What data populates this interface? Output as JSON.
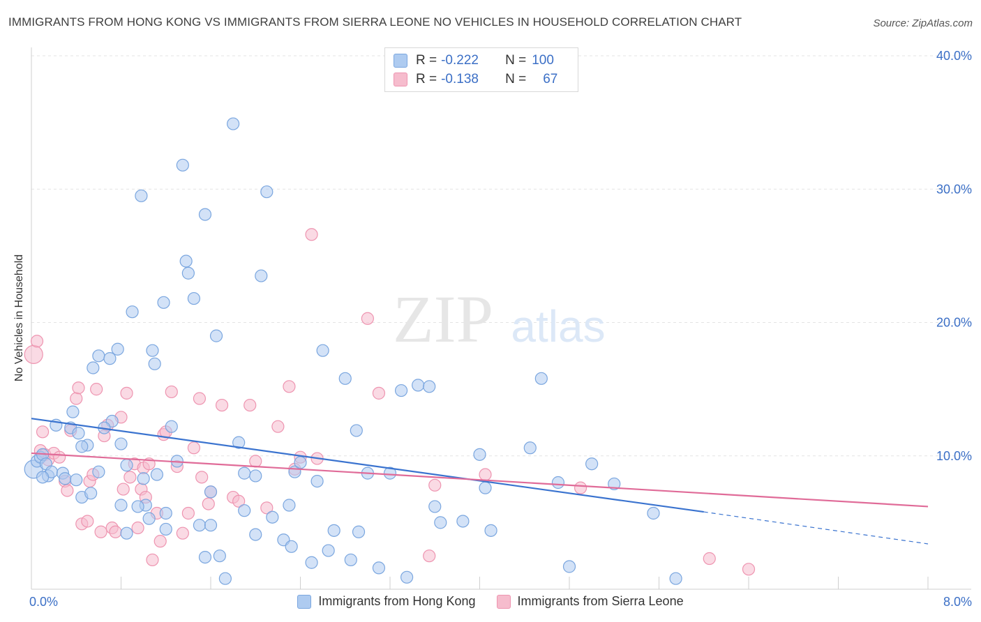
{
  "title": "IMMIGRANTS FROM HONG KONG VS IMMIGRANTS FROM SIERRA LEONE NO VEHICLES IN HOUSEHOLD CORRELATION CHART",
  "source": "Source: ZipAtlas.com",
  "watermark": {
    "zip": "ZIP",
    "atlas": "atlas"
  },
  "stats": [
    {
      "r_label": "R =",
      "r_value": "-0.222",
      "n_label": "N =",
      "n_value": "100"
    },
    {
      "r_label": "R =",
      "r_value": "-0.138",
      "n_label": "N =",
      "n_value": "67"
    }
  ],
  "colors": {
    "blue_fill": "#aecbf0",
    "blue_stroke": "#7aa6df",
    "blue_line": "#3a73cf",
    "pink_fill": "#f6bccd",
    "pink_stroke": "#ee94b0",
    "pink_line": "#e06b98",
    "tick_text": "#3b6fc6",
    "grid": "#e3e3e3"
  },
  "chart_data": {
    "type": "scatter",
    "title": "IMMIGRANTS FROM HONG KONG VS IMMIGRANTS FROM SIERRA LEONE NO VEHICLES IN HOUSEHOLD CORRELATION CHART",
    "xlabel": "",
    "ylabel": "No Vehicles in Household",
    "xlim": [
      0,
      8
    ],
    "ylim": [
      0,
      40
    ],
    "x_tick_labels": [
      "0.0%",
      "8.0%"
    ],
    "y_tick_labels": [
      "10.0%",
      "20.0%",
      "30.0%",
      "40.0%"
    ],
    "y_ticks": [
      10,
      20,
      30,
      40
    ],
    "grid": true,
    "legend_position": "bottom",
    "series": [
      {
        "name": "Immigrants from Hong Kong",
        "color": "#aecbf0",
        "trend": {
          "x": [
            0,
            6.0
          ],
          "y": [
            12.8,
            5.8
          ],
          "dashed_to": [
            8.0,
            3.4
          ]
        },
        "points": [
          [
            0.02,
            9.0
          ],
          [
            0.05,
            9.6
          ],
          [
            0.08,
            9.9
          ],
          [
            0.1,
            10.1
          ],
          [
            0.13,
            9.4
          ],
          [
            0.15,
            8.5
          ],
          [
            0.18,
            8.8
          ],
          [
            0.22,
            12.3
          ],
          [
            0.28,
            8.7
          ],
          [
            0.3,
            8.3
          ],
          [
            0.35,
            12.1
          ],
          [
            0.37,
            13.3
          ],
          [
            0.42,
            11.7
          ],
          [
            0.45,
            6.9
          ],
          [
            0.53,
            7.2
          ],
          [
            0.5,
            10.8
          ],
          [
            0.55,
            16.6
          ],
          [
            0.6,
            17.5
          ],
          [
            0.7,
            17.3
          ],
          [
            0.72,
            12.6
          ],
          [
            0.77,
            18.0
          ],
          [
            0.8,
            10.9
          ],
          [
            0.8,
            6.3
          ],
          [
            0.85,
            9.3
          ],
          [
            0.85,
            4.2
          ],
          [
            0.9,
            20.8
          ],
          [
            0.98,
            29.5
          ],
          [
            1.02,
            6.3
          ],
          [
            1.05,
            5.3
          ],
          [
            1.08,
            17.9
          ],
          [
            1.1,
            16.9
          ],
          [
            1.12,
            8.6
          ],
          [
            1.18,
            21.5
          ],
          [
            1.2,
            5.7
          ],
          [
            1.25,
            12.2
          ],
          [
            1.3,
            9.6
          ],
          [
            1.35,
            31.8
          ],
          [
            1.38,
            24.6
          ],
          [
            1.4,
            23.7
          ],
          [
            1.45,
            21.8
          ],
          [
            1.5,
            4.8
          ],
          [
            1.55,
            28.1
          ],
          [
            1.6,
            7.3
          ],
          [
            1.65,
            19.0
          ],
          [
            1.68,
            2.5
          ],
          [
            1.73,
            0.8
          ],
          [
            1.8,
            34.9
          ],
          [
            1.85,
            11.0
          ],
          [
            1.9,
            5.9
          ],
          [
            1.9,
            8.7
          ],
          [
            2.0,
            4.1
          ],
          [
            2.05,
            23.5
          ],
          [
            2.1,
            29.8
          ],
          [
            2.15,
            5.4
          ],
          [
            2.25,
            3.7
          ],
          [
            2.3,
            6.3
          ],
          [
            2.32,
            3.2
          ],
          [
            2.35,
            8.8
          ],
          [
            2.4,
            9.5
          ],
          [
            2.5,
            2.0
          ],
          [
            2.55,
            8.1
          ],
          [
            2.6,
            17.9
          ],
          [
            2.65,
            2.9
          ],
          [
            2.7,
            4.4
          ],
          [
            2.8,
            15.8
          ],
          [
            2.85,
            2.2
          ],
          [
            2.92,
            4.3
          ],
          [
            3.0,
            8.7
          ],
          [
            3.1,
            1.6
          ],
          [
            3.2,
            8.7
          ],
          [
            3.3,
            14.9
          ],
          [
            3.35,
            0.9
          ],
          [
            3.45,
            15.3
          ],
          [
            3.55,
            15.2
          ],
          [
            3.6,
            6.2
          ],
          [
            3.65,
            5.0
          ],
          [
            3.85,
            5.1
          ],
          [
            4.0,
            10.1
          ],
          [
            4.05,
            7.6
          ],
          [
            4.1,
            4.4
          ],
          [
            4.45,
            10.6
          ],
          [
            4.55,
            15.8
          ],
          [
            4.7,
            8.0
          ],
          [
            4.8,
            1.7
          ],
          [
            5.0,
            9.4
          ],
          [
            5.2,
            7.9
          ],
          [
            5.55,
            5.7
          ],
          [
            5.75,
            0.8
          ],
          [
            1.55,
            2.4
          ],
          [
            1.6,
            4.8
          ],
          [
            2.0,
            8.5
          ],
          [
            0.95,
            6.2
          ],
          [
            1.0,
            8.3
          ],
          [
            0.6,
            8.8
          ],
          [
            0.4,
            8.2
          ],
          [
            0.65,
            12.1
          ],
          [
            1.2,
            4.5
          ],
          [
            2.9,
            11.9
          ],
          [
            0.45,
            10.7
          ],
          [
            0.1,
            8.4
          ]
        ]
      },
      {
        "name": "Immigrants from Sierra Leone",
        "color": "#f6bccd",
        "trend": {
          "x": [
            0,
            8.0
          ],
          "y": [
            10.2,
            6.2
          ]
        },
        "points": [
          [
            0.02,
            17.6
          ],
          [
            0.05,
            18.6
          ],
          [
            0.08,
            10.4
          ],
          [
            0.1,
            11.8
          ],
          [
            0.12,
            10.1
          ],
          [
            0.15,
            9.7
          ],
          [
            0.2,
            10.2
          ],
          [
            0.25,
            9.9
          ],
          [
            0.3,
            8.1
          ],
          [
            0.32,
            7.4
          ],
          [
            0.35,
            11.9
          ],
          [
            0.4,
            14.3
          ],
          [
            0.42,
            15.1
          ],
          [
            0.45,
            4.9
          ],
          [
            0.5,
            5.1
          ],
          [
            0.52,
            8.1
          ],
          [
            0.55,
            8.6
          ],
          [
            0.58,
            15.0
          ],
          [
            0.62,
            4.3
          ],
          [
            0.65,
            11.5
          ],
          [
            0.68,
            12.3
          ],
          [
            0.72,
            4.6
          ],
          [
            0.75,
            4.3
          ],
          [
            0.8,
            12.9
          ],
          [
            0.82,
            7.5
          ],
          [
            0.85,
            14.7
          ],
          [
            0.88,
            8.4
          ],
          [
            0.92,
            9.4
          ],
          [
            0.95,
            4.6
          ],
          [
            0.98,
            7.5
          ],
          [
            1.0,
            9.1
          ],
          [
            1.02,
            6.9
          ],
          [
            1.05,
            9.4
          ],
          [
            1.08,
            2.2
          ],
          [
            1.12,
            5.7
          ],
          [
            1.15,
            3.6
          ],
          [
            1.18,
            11.6
          ],
          [
            1.2,
            11.8
          ],
          [
            1.25,
            14.8
          ],
          [
            1.3,
            9.2
          ],
          [
            1.35,
            4.2
          ],
          [
            1.4,
            5.7
          ],
          [
            1.45,
            10.6
          ],
          [
            1.5,
            14.3
          ],
          [
            1.52,
            8.4
          ],
          [
            1.58,
            6.4
          ],
          [
            1.6,
            7.3
          ],
          [
            1.7,
            13.8
          ],
          [
            1.8,
            6.9
          ],
          [
            1.85,
            6.6
          ],
          [
            1.95,
            13.8
          ],
          [
            2.0,
            9.6
          ],
          [
            2.1,
            6.1
          ],
          [
            2.2,
            12.2
          ],
          [
            2.3,
            15.2
          ],
          [
            2.4,
            9.9
          ],
          [
            2.5,
            26.6
          ],
          [
            3.0,
            20.3
          ],
          [
            3.1,
            14.7
          ],
          [
            3.55,
            2.5
          ],
          [
            3.6,
            7.8
          ],
          [
            4.05,
            8.6
          ],
          [
            4.9,
            7.6
          ],
          [
            6.05,
            2.3
          ],
          [
            6.4,
            1.5
          ],
          [
            2.35,
            9.0
          ],
          [
            2.55,
            9.8
          ]
        ]
      }
    ]
  },
  "legend": {
    "items": [
      {
        "label": "Immigrants from Hong Kong"
      },
      {
        "label": "Immigrants from Sierra Leone"
      }
    ]
  }
}
